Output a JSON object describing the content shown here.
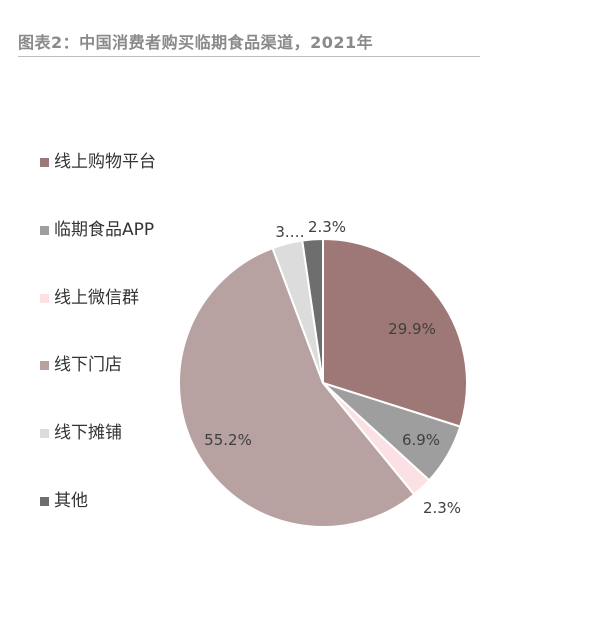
{
  "header": {
    "title": "图表2：中国消费者购买临期食品渠道，2021年"
  },
  "chart_data": {
    "type": "pie",
    "title": "图表2：中国消费者购买临期食品渠道，2021年",
    "legend_position": "left",
    "slices": [
      {
        "label": "线上购物平台",
        "value": 29.9,
        "display": "29.9%",
        "color": "#9e7876"
      },
      {
        "label": "临期食品APP",
        "value": 6.9,
        "display": "6.9%",
        "color": "#9e9e9e"
      },
      {
        "label": "线上微信群",
        "value": 2.3,
        "display": "2.3%",
        "color": "#fbe1e3"
      },
      {
        "label": "线下门店",
        "value": 55.2,
        "display": "55.2%",
        "color": "#b7a1a1"
      },
      {
        "label": "线下摊铺",
        "value": 3.4,
        "display": "3.…",
        "color": "#dcdcdc"
      },
      {
        "label": "其他",
        "value": 2.3,
        "display": "2.3%",
        "color": "#6e6e6e"
      }
    ]
  }
}
